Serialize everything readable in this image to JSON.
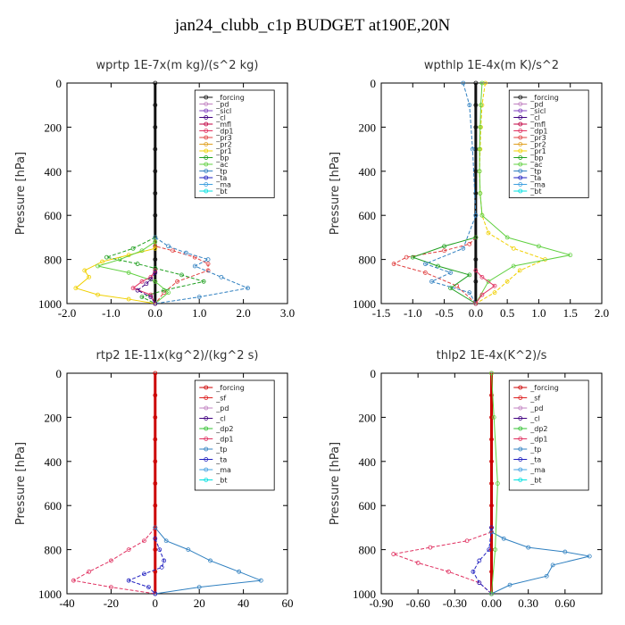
{
  "page": {
    "title": "jan24_clubb_c1p  BUDGET at190E,20N"
  },
  "colors": {
    "forcing": "#111111",
    "pd": "#c080c0",
    "sicl": "#8040c0",
    "cl": "#400080",
    "mfl": "#c00040",
    "dp1": "#e03060",
    "pr3": "#e04040",
    "pr2": "#e0a020",
    "pr1": "#f0d000",
    "bp": "#20a020",
    "ac": "#60d040",
    "tp": "#3080c0",
    "ta": "#2020c0",
    "ma": "#40a0e0",
    "bt": "#00e0e0",
    "forcing_red": "#cc0000",
    "sf": "#dd2020",
    "dp2": "#30c030"
  },
  "chart_data": [
    {
      "type": "line",
      "title": "wprtp  1E-7x(m kg)/(s^2 kg)",
      "ylabel": "Pressure [hPa]",
      "xlim": [
        -2.0,
        3.0
      ],
      "ylim": [
        1000,
        0
      ],
      "xticks": [
        "-2.0",
        "-1.0",
        "0.0",
        "1.0",
        "2.0",
        "3.0"
      ],
      "yticks": [
        "0",
        "200",
        "400",
        "600",
        "800",
        "1000"
      ],
      "legend": [
        "_forcing",
        "_pd",
        "_sicl",
        "_cl",
        "_mfl",
        "_dp1",
        "_pr3",
        "_pr2",
        "_pr1",
        "_bp",
        "_ac",
        "_tp",
        "_ta",
        "_ma",
        "_bt"
      ],
      "series": [
        {
          "name": "_forcing",
          "x": [
            0,
            0,
            0,
            0,
            0,
            0,
            0,
            0,
            0,
            0,
            0
          ],
          "y": [
            0,
            100,
            200,
            300,
            400,
            500,
            600,
            700,
            800,
            900,
            1000
          ]
        },
        {
          "name": "_pr3",
          "x": [
            0,
            0,
            0.4,
            0.9,
            1.2,
            1.2,
            0.5,
            0.2,
            0
          ],
          "y": [
            700,
            740,
            760,
            790,
            820,
            850,
            900,
            950,
            1000
          ]
        },
        {
          "name": "_pr1",
          "x": [
            0,
            0,
            -0.6,
            -1.2,
            -1.6,
            -1.5,
            -1.8,
            -1.3,
            -0.6,
            0
          ],
          "y": [
            700,
            750,
            780,
            810,
            850,
            880,
            930,
            960,
            980,
            1000
          ]
        },
        {
          "name": "_bp",
          "x": [
            0,
            -0.5,
            -1.1,
            -0.4,
            0,
            0.6,
            1.1,
            0.2,
            -0.3,
            0
          ],
          "y": [
            700,
            750,
            790,
            820,
            840,
            870,
            900,
            940,
            970,
            1000
          ]
        },
        {
          "name": "_ac",
          "x": [
            0,
            -0.3,
            -0.8,
            -1.3,
            -0.6,
            0,
            0.3,
            0
          ],
          "y": [
            720,
            760,
            800,
            830,
            860,
            900,
            950,
            1000
          ]
        },
        {
          "name": "_tp",
          "x": [
            0,
            0.3,
            0.7,
            1.2,
            0.9,
            1.5,
            2.1,
            1.0,
            0
          ],
          "y": [
            700,
            740,
            770,
            800,
            830,
            880,
            930,
            970,
            1000
          ]
        },
        {
          "name": "_dp1",
          "x": [
            0,
            -0.1,
            -0.3,
            -0.5,
            -0.1,
            0
          ],
          "y": [
            850,
            880,
            900,
            930,
            960,
            1000
          ]
        },
        {
          "name": "_cl",
          "x": [
            0,
            -0.1,
            -0.2,
            -0.4,
            -0.1,
            0
          ],
          "y": [
            860,
            890,
            910,
            940,
            970,
            1000
          ]
        }
      ]
    },
    {
      "type": "line",
      "title": "wpthlp  1E-4x(m K)/s^2",
      "ylabel": "Pressure [hPa]",
      "xlim": [
        -1.5,
        2.0
      ],
      "ylim": [
        1000,
        0
      ],
      "xticks": [
        "-1.5",
        "-1.0",
        "-0.5",
        "0.0",
        "0.5",
        "1.0",
        "1.5",
        "2.0"
      ],
      "yticks": [
        "0",
        "200",
        "400",
        "600",
        "800",
        "1000"
      ],
      "legend": [
        "_forcing",
        "_pd",
        "_sicl",
        "_cl",
        "_mfl",
        "_dp1",
        "_pr3",
        "_pr2",
        "_pr1",
        "_bp",
        "_ac",
        "_tp",
        "_ta",
        "_ma",
        "_bt"
      ],
      "series": [
        {
          "name": "_forcing",
          "x": [
            0,
            0,
            0,
            0,
            0,
            0,
            0,
            0,
            0,
            0,
            0
          ],
          "y": [
            0,
            100,
            200,
            300,
            400,
            500,
            600,
            700,
            800,
            900,
            1000
          ]
        },
        {
          "name": "_pr1",
          "x": [
            0.15,
            0.1,
            0.08,
            0.07,
            0.06,
            0.07,
            0.1,
            0.2,
            0.6,
            1.1,
            0.7,
            0.5,
            0.3,
            0
          ],
          "y": [
            0,
            100,
            200,
            300,
            400,
            500,
            600,
            680,
            750,
            800,
            850,
            900,
            950,
            1000
          ]
        },
        {
          "name": "_ac",
          "x": [
            0.1,
            0.08,
            0.07,
            0.06,
            0.06,
            0.07,
            0.1,
            0.5,
            1.0,
            1.5,
            0.6,
            0.2,
            0
          ],
          "y": [
            0,
            100,
            200,
            300,
            400,
            500,
            600,
            700,
            740,
            780,
            830,
            900,
            1000
          ]
        },
        {
          "name": "_pr3",
          "x": [
            0,
            -0.1,
            -0.5,
            -1.1,
            -1.3,
            -0.8,
            -0.3,
            0
          ],
          "y": [
            700,
            730,
            760,
            790,
            820,
            860,
            920,
            1000
          ]
        },
        {
          "name": "_bp",
          "x": [
            0,
            -0.5,
            -1.0,
            -0.6,
            -0.1,
            -0.4,
            0
          ],
          "y": [
            700,
            740,
            790,
            830,
            870,
            930,
            1000
          ]
        },
        {
          "name": "_tp",
          "x": [
            -0.2,
            -0.1,
            -0.05,
            0,
            -0.2,
            -0.8,
            -0.4,
            -0.7,
            -0.1,
            0
          ],
          "y": [
            0,
            100,
            300,
            600,
            750,
            820,
            860,
            900,
            950,
            1000
          ]
        },
        {
          "name": "_dp1",
          "x": [
            0,
            0.1,
            0.3,
            0.1,
            0
          ],
          "y": [
            850,
            880,
            920,
            960,
            1000
          ]
        }
      ]
    },
    {
      "type": "line",
      "title": "rtp2  1E-11x(kg^2)/(kg^2 s)",
      "ylabel": "Pressure [hPa]",
      "xlim": [
        -40,
        60
      ],
      "ylim": [
        1000,
        0
      ],
      "xticks": [
        "-40",
        "-20",
        "0",
        "20",
        "40",
        "60"
      ],
      "yticks": [
        "0",
        "200",
        "400",
        "600",
        "800",
        "1000"
      ],
      "legend": [
        "_forcing",
        "_sf",
        "_pd",
        "_cl",
        "_dp2",
        "_dp1",
        "_tp",
        "_ta",
        "_ma",
        "_bt"
      ],
      "series": [
        {
          "name": "_forcing",
          "x": [
            0,
            0,
            0,
            0,
            0,
            0,
            0,
            0,
            0,
            0,
            0
          ],
          "y": [
            0,
            100,
            200,
            300,
            400,
            500,
            600,
            700,
            800,
            900,
            1000
          ]
        },
        {
          "name": "_dp1",
          "x": [
            0,
            -5,
            -12,
            -20,
            -30,
            -37,
            -20,
            0
          ],
          "y": [
            700,
            760,
            800,
            850,
            900,
            940,
            970,
            1000
          ]
        },
        {
          "name": "_tp",
          "x": [
            0,
            5,
            15,
            25,
            38,
            48,
            20,
            0
          ],
          "y": [
            700,
            760,
            800,
            850,
            900,
            940,
            970,
            1000
          ]
        },
        {
          "name": "_ta",
          "x": [
            0,
            2,
            4,
            3,
            -5,
            -12,
            -3,
            0
          ],
          "y": [
            750,
            800,
            850,
            880,
            910,
            940,
            970,
            1000
          ]
        }
      ]
    },
    {
      "type": "line",
      "title": "thlp2  1E-4x(K^2)/s",
      "ylabel": "Pressure [hPa]",
      "xlim": [
        -0.9,
        0.9
      ],
      "ylim": [
        1000,
        0
      ],
      "xticks": [
        "-0.90",
        "-0.60",
        "-0.30",
        "0.00",
        "0.30",
        "0.60"
      ],
      "yticks": [
        "0",
        "200",
        "400",
        "600",
        "800",
        "1000"
      ],
      "legend": [
        "_forcing",
        "_sf",
        "_pd",
        "_cl",
        "_dp2",
        "_dp1",
        "_tp",
        "_ta",
        "_ma",
        "_bt"
      ],
      "series": [
        {
          "name": "_forcing",
          "x": [
            0,
            0,
            0,
            0,
            0,
            0,
            0,
            0,
            0,
            0,
            0
          ],
          "y": [
            0,
            100,
            200,
            300,
            400,
            500,
            600,
            700,
            800,
            900,
            1000
          ]
        },
        {
          "name": "_dp1",
          "x": [
            0,
            -0.2,
            -0.5,
            -0.8,
            -0.6,
            -0.35,
            -0.1,
            0
          ],
          "y": [
            720,
            760,
            790,
            820,
            860,
            900,
            950,
            1000
          ]
        },
        {
          "name": "_tp",
          "x": [
            0,
            0.1,
            0.3,
            0.6,
            0.8,
            0.5,
            0.45,
            0.15,
            0
          ],
          "y": [
            720,
            750,
            790,
            810,
            830,
            870,
            920,
            960,
            1000
          ]
        },
        {
          "name": "_ta",
          "x": [
            0,
            -0.02,
            -0.1,
            -0.15,
            -0.1,
            0
          ],
          "y": [
            700,
            800,
            850,
            900,
            950,
            1000
          ]
        },
        {
          "name": "_ac",
          "x": [
            0,
            0.02,
            0.05,
            0.03,
            0
          ],
          "y": [
            0,
            200,
            500,
            800,
            1000
          ]
        }
      ]
    }
  ]
}
